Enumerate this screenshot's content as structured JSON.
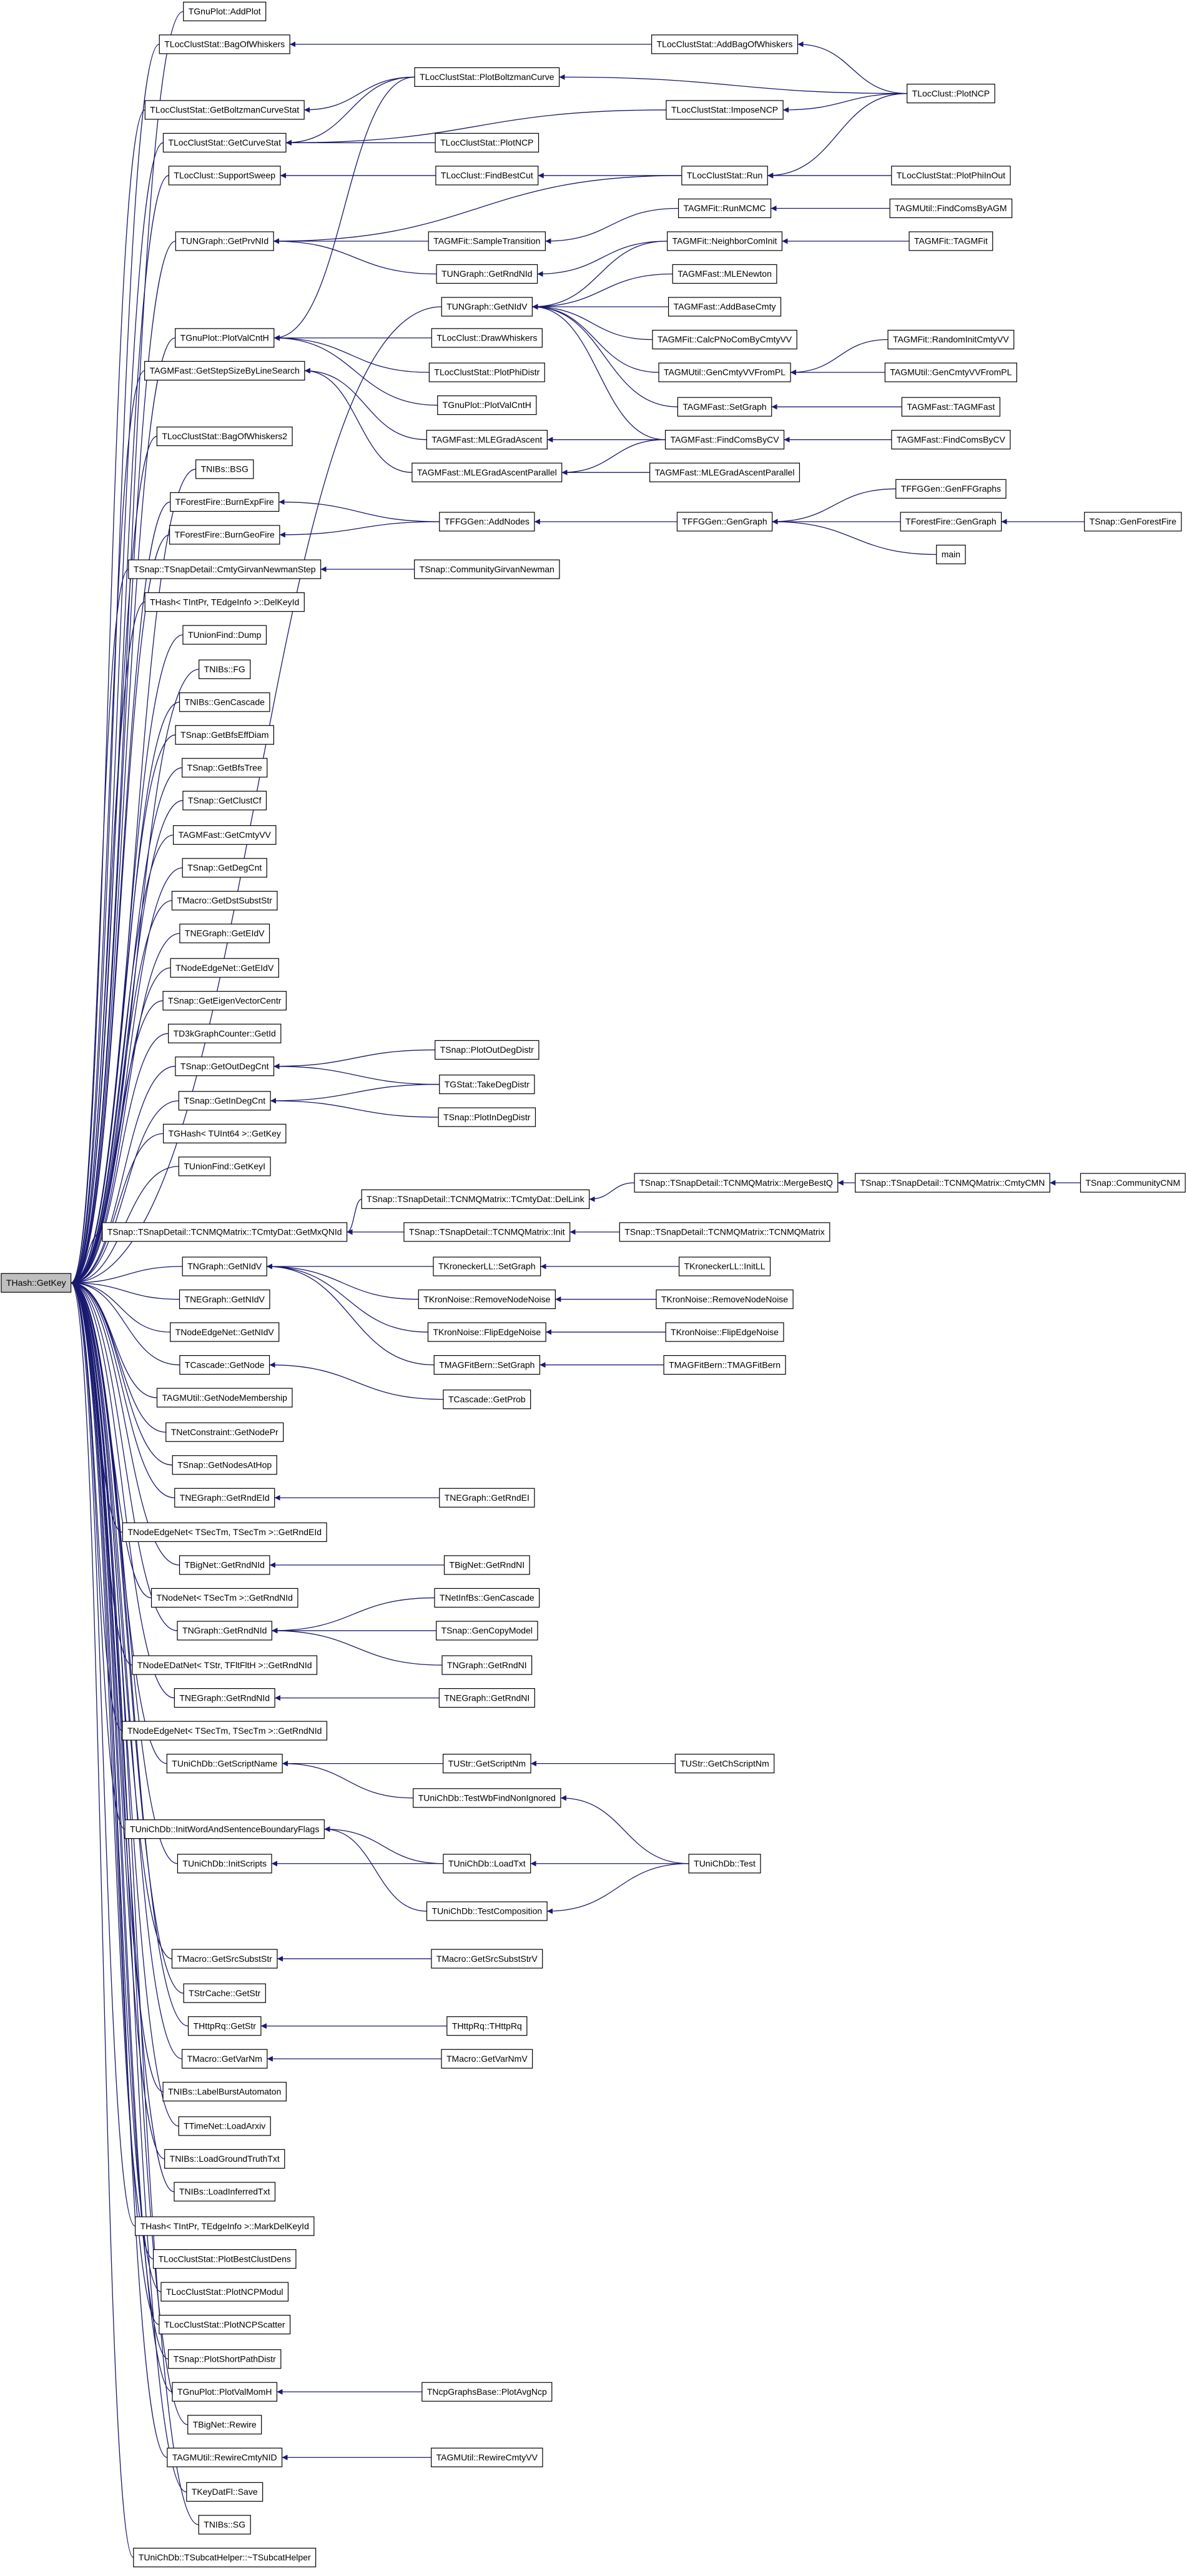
{
  "nodes": [
    "THash::GetKey",
    "TGnuPlot::AddPlot",
    "TLocClustStat::BagOfWhiskers",
    "TLocClustStat::GetBoltzmanCurveStat",
    "TLocClustStat::GetCurveStat",
    "TLocClust::SupportSweep",
    "TUNGraph::GetPrvNId",
    "TGnuPlot::PlotValCntH",
    "TAGMFast::GetStepSizeByLineSearch",
    "TLocClustStat::BagOfWhiskers2",
    "TNIBs::BSG",
    "TForestFire::BurnExpFire",
    "TForestFire::BurnGeoFire",
    "TSnap::TSnapDetail::CmtyGirvanNewmanStep",
    "THash< TIntPr, TEdgeInfo >::DelKeyId",
    "TUnionFind::Dump",
    "TNIBs::FG",
    "TNIBs::GenCascade",
    "TSnap::GetBfsEffDiam",
    "TSnap::GetBfsTree",
    "TSnap::GetClustCf",
    "TAGMFast::GetCmtyVV",
    "TSnap::GetDegCnt",
    "TMacro::GetDstSubstStr",
    "TNEGraph::GetEIdV",
    "TNodeEdgeNet::GetEIdV",
    "TSnap::GetEigenVectorCentr",
    "TD3kGraphCounter::GetId",
    "TSnap::GetOutDegCnt",
    "TSnap::GetInDegCnt",
    "TGHash< TUInt64 >::GetKey",
    "TUnionFind::GetKeyI",
    "TSnap::TSnapDetail::TCNMQMatrix::TCmtyDat::GetMxQNId",
    "TNGraph::GetNIdV",
    "TNEGraph::GetNIdV",
    "TNodeEdgeNet::GetNIdV",
    "TCascade::GetNode",
    "TAGMUtil::GetNodeMembership",
    "TNetConstraint::GetNodePr",
    "TSnap::GetNodesAtHop",
    "TNEGraph::GetRndEId",
    "TNodeEdgeNet< TSecTm, TSecTm >::GetRndEId",
    "TBigNet::GetRndNId",
    "TNodeNet< TSecTm >::GetRndNId",
    "TNGraph::GetRndNId",
    "TNodeEDatNet< TStr, TFltFltH >::GetRndNId",
    "TNEGraph::GetRndNId",
    "TNodeEdgeNet< TSecTm, TSecTm >::GetRndNId",
    "TUniChDb::GetScriptName",
    "TUniChDb::InitWordAndSentenceBoundaryFlags",
    "TUniChDb::InitScripts",
    "TMacro::GetSrcSubstStr",
    "TStrCache::GetStr",
    "THttpRq::GetStr",
    "TMacro::GetVarNm",
    "TNIBs::LabelBurstAutomaton",
    "TTimeNet::LoadArxiv",
    "TNIBs::LoadGroundTruthTxt",
    "TNIBs::LoadInferredTxt",
    "THash< TIntPr, TEdgeInfo >::MarkDelKeyId",
    "TLocClustStat::PlotBestClustDens",
    "TLocClustStat::PlotNCPModul",
    "TLocClustStat::PlotNCPScatter",
    "TSnap::PlotShortPathDistr",
    "TGnuPlot::PlotValMomH",
    "TBigNet::Rewire",
    "TAGMUtil::RewireCmtyNID",
    "TKeyDatFl::Save",
    "TNIBs::SG",
    "TUniChDb::TSubcatHelper::~TSubcatHelper",
    "TLocClustStat::PlotBoltzmanCurve",
    "TLocClustStat::PlotNCP",
    "TLocClust::FindBestCut",
    "TAGMFit::SampleTransition",
    "TUNGraph::GetRndNId",
    "TUNGraph::GetNIdV",
    "TLocClust::DrawWhiskers",
    "TLocClustStat::PlotPhiDistr",
    "TGnuPlot::PlotValCntH",
    "TAGMFast::MLEGradAscent",
    "TAGMFast::MLEGradAscentParallel",
    "TFFGGen::AddNodes",
    "TSnap::CommunityGirvanNewman",
    "TSnap::PlotOutDegDistr",
    "TGStat::TakeDegDistr",
    "TSnap::PlotInDegDistr",
    "TSnap::TSnapDetail::TCNMQMatrix::TCmtyDat::DelLink",
    "TSnap::TSnapDetail::TCNMQMatrix::Init",
    "TKroneckerLL::SetGraph",
    "TKronNoise::RemoveNodeNoise",
    "TKronNoise::FlipEdgeNoise",
    "TMAGFitBern::SetGraph",
    "TCascade::GetProb",
    "TNEGraph::GetRndEI",
    "TBigNet::GetRndNI",
    "TNetInfBs::GenCascade",
    "TSnap::GenCopyModel",
    "TNGraph::GetRndNI",
    "TNEGraph::GetRndNI",
    "TUStr::GetScriptNm",
    "TUniChDb::TestWbFindNonIgnored",
    "TUniChDb::LoadTxt",
    "TUniChDb::TestComposition",
    "TMacro::GetSrcSubstStrV",
    "THttpRq::THttpRq",
    "TMacro::GetVarNmV",
    "TNcpGraphsBase::PlotAvgNcp",
    "TAGMUtil::RewireCmtyVV",
    "TLocClustStat::AddBagOfWhiskers",
    "TLocClustStat::ImposeNCP",
    "TLocClustStat::Run",
    "TAGMFit::RunMCMC",
    "TAGMFit::NeighborComInit",
    "TAGMFast::MLENewton",
    "TAGMFast::AddBaseCmty",
    "TAGMFit::CalcPNoComByCmtyVV",
    "TAGMUtil::GenCmtyVVFromPL",
    "TAGMFast::SetGraph",
    "TAGMFast::FindComsByCV",
    "TAGMFast::MLEGradAscentParallel",
    "TFFGGen::GenGraph",
    "TSnap::TSnapDetail::TCNMQMatrix::MergeBestQ",
    "TSnap::TSnapDetail::TCNMQMatrix::TCNMQMatrix",
    "TKroneckerLL::InitLL",
    "TKronNoise::RemoveNodeNoise",
    "TKronNoise::FlipEdgeNoise",
    "TMAGFitBern::TMAGFitBern",
    "TUStr::GetChScriptNm",
    "TUniChDb::Test",
    "TLocClust::PlotNCP",
    "TLocClustStat::PlotPhiInOut",
    "TAGMUtil::FindComsByAGM",
    "TAGMFit::TAGMFit",
    "TAGMFit::RandomInitCmtyVV",
    "TAGMUtil::GenCmtyVVFromPL",
    "TAGMFast::TAGMFast",
    "TAGMFast::FindComsByCV",
    "TFFGGen::GenFFGraphs",
    "TForestFire::GenGraph",
    "main",
    "TSnap::TSnapDetail::TCNMQMatrix::CmtyCMN",
    "TSnap::GenForestFire",
    "TSnap::CommunityCNM"
  ]
}
